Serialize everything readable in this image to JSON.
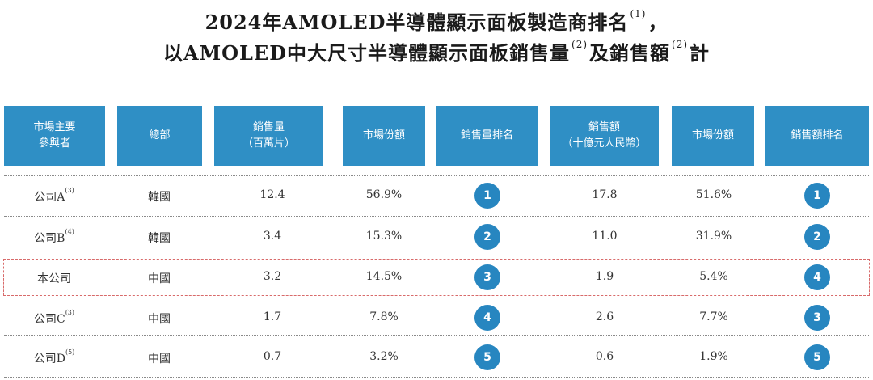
{
  "title": {
    "line1_a": "2024年AMOLED半導體顯示面板製造商排名",
    "line1_ref": "(1)",
    "line1_b": "，",
    "line2_a": "以AMOLED中大尺寸半導體顯示面板銷售量",
    "line2_ref1": "(2)",
    "line2_b": "及銷售額",
    "line2_ref2": "(2)",
    "line2_c": "計"
  },
  "headers": [
    {
      "l1": "市場主要",
      "l2": "參與者"
    },
    {
      "l1": "總部",
      "l2": ""
    },
    {
      "l1": "銷售量",
      "l2": "（百萬片）"
    },
    {
      "l1": "市場份額",
      "l2": ""
    },
    {
      "l1": "銷售量排名",
      "l2": ""
    },
    {
      "l1": "銷售額",
      "l2": "（十億元人民幣）"
    },
    {
      "l1": "市場份額",
      "l2": ""
    },
    {
      "l1": "銷售額排名",
      "l2": ""
    }
  ],
  "rows": [
    {
      "name": "公司A",
      "ref": "(3)",
      "hq": "韓國",
      "volume": "12.4",
      "vol_share": "56.9%",
      "vol_rank": "1",
      "revenue": "17.8",
      "rev_share": "51.6%",
      "rev_rank": "1"
    },
    {
      "name": "公司B",
      "ref": "(4)",
      "hq": "韓國",
      "volume": "3.4",
      "vol_share": "15.3%",
      "vol_rank": "2",
      "revenue": "11.0",
      "rev_share": "31.9%",
      "rev_rank": "2"
    },
    {
      "name": "本公司",
      "ref": "",
      "hq": "中國",
      "volume": "3.2",
      "vol_share": "14.5%",
      "vol_rank": "3",
      "revenue": "1.9",
      "rev_share": "5.4%",
      "rev_rank": "4"
    },
    {
      "name": "公司C",
      "ref": "(3)",
      "hq": "中國",
      "volume": "1.7",
      "vol_share": "7.8%",
      "vol_rank": "4",
      "revenue": "2.6",
      "rev_share": "7.7%",
      "rev_rank": "3"
    },
    {
      "name": "公司D",
      "ref": "(5)",
      "hq": "中國",
      "volume": "0.7",
      "vol_share": "3.2%",
      "vol_rank": "5",
      "revenue": "0.6",
      "rev_share": "1.9%",
      "rev_rank": "5"
    }
  ],
  "colors": {
    "header_bg": "#2f8fc5",
    "badge_bg": "#2786c0",
    "highlight_border": "#d86a6a"
  }
}
